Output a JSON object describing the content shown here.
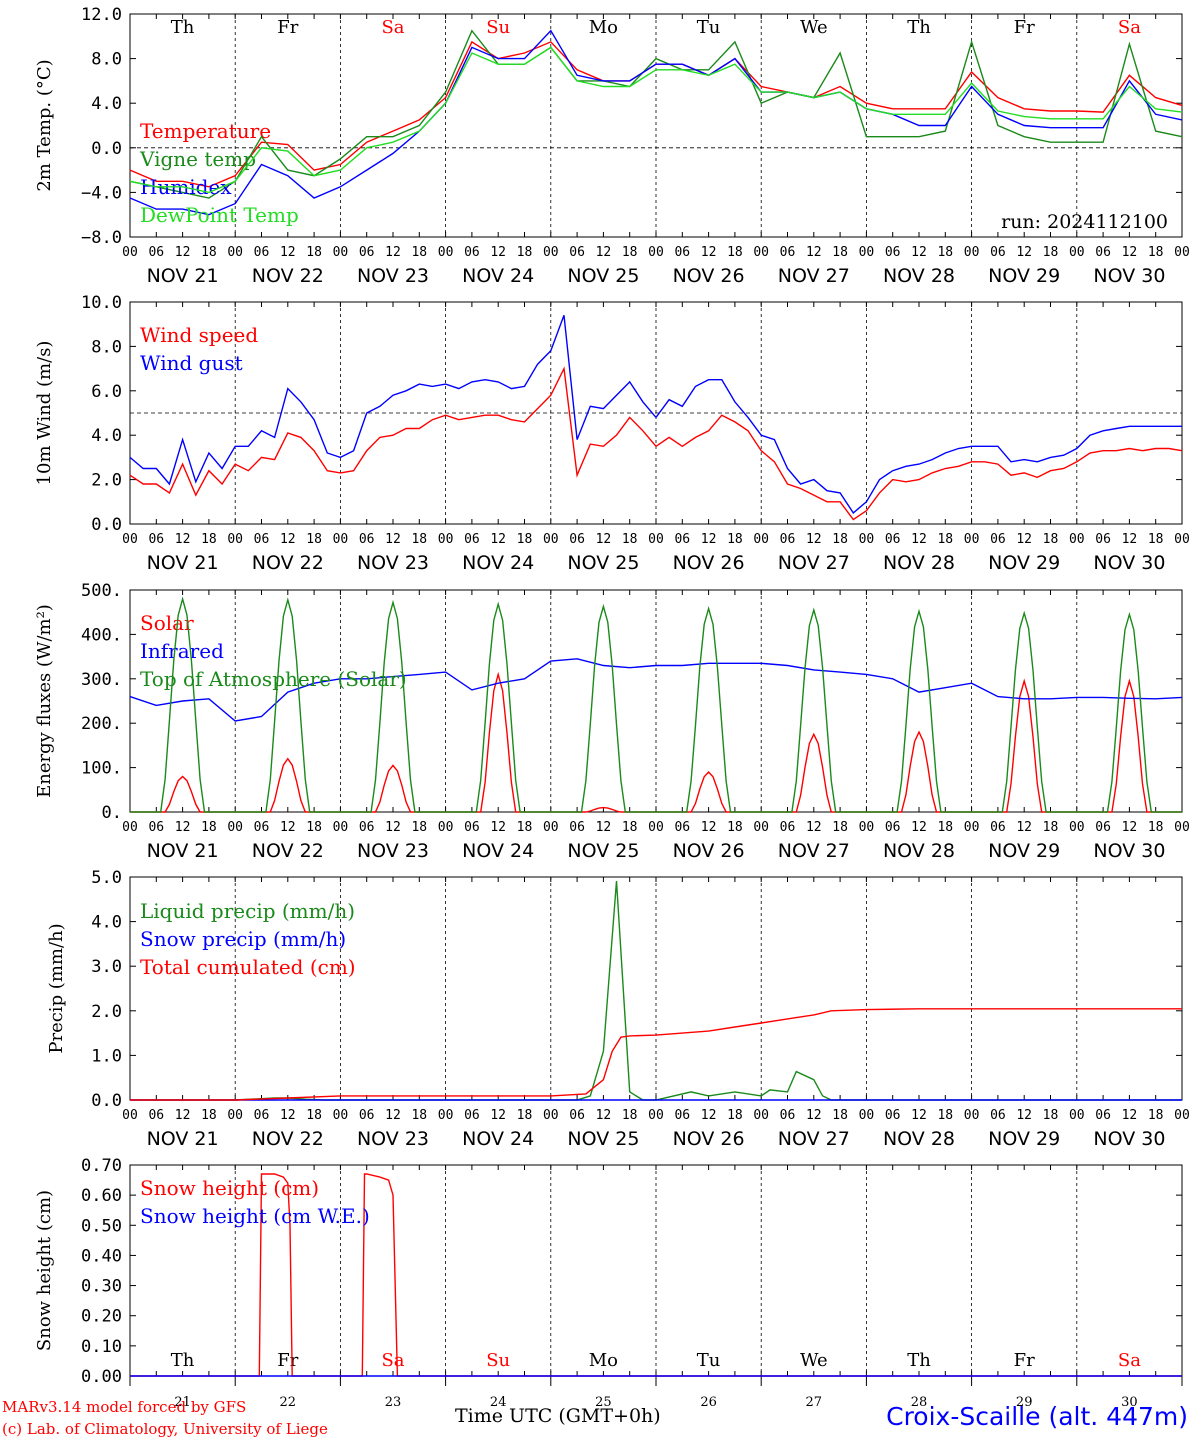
{
  "run_label": "run: 2024112100",
  "footer": {
    "model": "MARv3.14 model forced by GFS",
    "credit": "(c) Lab. of Climatology, University of Liege",
    "time_label": "Time UTC (GMT+0h)",
    "station": "Croix-Scaille (alt. 447m)"
  },
  "colors": {
    "red": "#ff0000",
    "green": "#1a8a1a",
    "blue": "#0000ff",
    "lightgreen": "#22dd22",
    "weekend": "#ff0000"
  },
  "chart_data": [
    {
      "type": "line",
      "ylabel": "2m Temp. (°C)",
      "ylim": [
        -8,
        12
      ],
      "yticks": [
        "12.0",
        "8.0",
        "4.0",
        "0.0",
        "−4.0",
        "−8.0"
      ],
      "x_unit": "hours since NOV 21 00 UTC",
      "series": [
        {
          "name": "Temperature",
          "color": "red",
          "x": [
            0,
            6,
            12,
            18,
            24,
            30,
            36,
            42,
            48,
            54,
            60,
            66,
            72,
            78,
            84,
            90,
            96,
            102,
            108,
            114,
            120,
            126,
            132,
            138,
            144,
            150,
            156,
            162,
            168,
            174,
            180,
            186,
            192,
            198,
            204,
            210,
            216,
            222,
            228,
            234,
            240
          ],
          "values": [
            -2,
            -3,
            -3,
            -3.5,
            -2.5,
            0.5,
            0.3,
            -2,
            -1.5,
            0.5,
            1.5,
            2.5,
            4.5,
            9.5,
            8,
            8.5,
            9.5,
            7,
            6,
            6,
            7.5,
            7.5,
            6.5,
            8,
            5.5,
            5,
            4.5,
            5.5,
            4,
            3.5,
            3.5,
            3.5,
            6.8,
            4.5,
            3.5,
            3.3,
            3.3,
            3.2,
            6.5,
            4.5,
            3.8
          ]
        },
        {
          "name": "Vigne temp",
          "color": "green",
          "x": [
            0,
            6,
            12,
            18,
            24,
            30,
            36,
            42,
            48,
            54,
            60,
            66,
            72,
            78,
            84,
            90,
            96,
            102,
            108,
            114,
            120,
            126,
            132,
            138,
            144,
            150,
            156,
            162,
            168,
            174,
            180,
            186,
            192,
            198,
            204,
            210,
            216,
            222,
            228,
            234,
            240
          ],
          "values": [
            -3,
            -3.5,
            -4,
            -4.5,
            -3,
            1,
            -2,
            -2.5,
            -1,
            1,
            1,
            2,
            5,
            10.5,
            7.5,
            7.5,
            9,
            6,
            6,
            5.5,
            8,
            7,
            7,
            9.5,
            4,
            5,
            4.5,
            8.5,
            1,
            1,
            1,
            1.5,
            9.5,
            2,
            1,
            0.5,
            0.5,
            0.5,
            9.3,
            1.5,
            1
          ]
        },
        {
          "name": "Humidex",
          "color": "blue",
          "x": [
            0,
            6,
            12,
            18,
            24,
            30,
            36,
            42,
            48,
            54,
            60,
            66,
            72,
            78,
            84,
            90,
            96,
            102,
            108,
            114,
            120,
            126,
            132,
            138,
            144,
            150,
            156,
            162,
            168,
            174,
            180,
            186,
            192,
            198,
            204,
            210,
            216,
            222,
            228,
            234,
            240
          ],
          "values": [
            -4.5,
            -5.5,
            -5.5,
            -6,
            -5,
            -1.5,
            -2.5,
            -4.5,
            -3.5,
            -2,
            -0.5,
            1.5,
            4,
            9,
            8,
            8,
            10.5,
            6.5,
            6,
            6,
            7.5,
            7.5,
            6.5,
            8,
            5,
            5,
            4.5,
            5,
            3.5,
            3,
            2,
            2,
            5.5,
            3,
            2,
            1.8,
            1.8,
            1.8,
            6,
            3,
            2.5
          ]
        },
        {
          "name": "DewPoint Temp",
          "color": "lightgreen",
          "x": [
            0,
            6,
            12,
            18,
            24,
            30,
            36,
            42,
            48,
            54,
            60,
            66,
            72,
            78,
            84,
            90,
            96,
            102,
            108,
            114,
            120,
            126,
            132,
            138,
            144,
            150,
            156,
            162,
            168,
            174,
            180,
            186,
            192,
            198,
            204,
            210,
            216,
            222,
            228,
            234,
            240
          ],
          "values": [
            -3,
            -3.5,
            -3.5,
            -4,
            -3,
            0,
            -0.3,
            -2.5,
            -2,
            0,
            0.5,
            1.5,
            4,
            8.5,
            7.5,
            7.5,
            9,
            6,
            5.5,
            5.5,
            7,
            7,
            6.5,
            7.5,
            5,
            5,
            4.5,
            5,
            3.5,
            3,
            3,
            3,
            5.8,
            3.3,
            2.8,
            2.6,
            2.6,
            2.6,
            5.5,
            3.5,
            3.2
          ]
        }
      ]
    },
    {
      "type": "line",
      "ylabel": "10m Wind (m/s)",
      "ylim": [
        0,
        10
      ],
      "yticks": [
        "10.0",
        "8.0",
        "6.0",
        "4.0",
        "2.0",
        "0.0"
      ],
      "x_unit": "hours since NOV 21 00 UTC",
      "series": [
        {
          "name": "Wind speed",
          "color": "red",
          "x": [
            0,
            3,
            6,
            9,
            12,
            15,
            18,
            21,
            24,
            27,
            30,
            33,
            36,
            39,
            42,
            45,
            48,
            51,
            54,
            57,
            60,
            63,
            66,
            69,
            72,
            75,
            78,
            81,
            84,
            87,
            90,
            93,
            96,
            99,
            102,
            105,
            108,
            111,
            114,
            117,
            120,
            123,
            126,
            129,
            132,
            135,
            138,
            141,
            144,
            147,
            150,
            153,
            156,
            159,
            162,
            165,
            168,
            171,
            174,
            177,
            180,
            183,
            186,
            189,
            192,
            195,
            198,
            201,
            204,
            207,
            210,
            213,
            216,
            219,
            222,
            225,
            228,
            231,
            234,
            237,
            240
          ],
          "values": [
            2.2,
            1.8,
            1.8,
            1.4,
            2.7,
            1.3,
            2.4,
            1.8,
            2.7,
            2.4,
            3.0,
            2.9,
            4.1,
            3.9,
            3.3,
            2.4,
            2.3,
            2.4,
            3.3,
            3.9,
            4.0,
            4.3,
            4.3,
            4.7,
            4.9,
            4.7,
            4.8,
            4.9,
            4.9,
            4.7,
            4.6,
            5.2,
            5.8,
            7.0,
            2.2,
            3.6,
            3.5,
            4.0,
            4.8,
            4.2,
            3.5,
            3.9,
            3.5,
            3.9,
            4.2,
            4.9,
            4.6,
            4.2,
            3.3,
            2.8,
            1.8,
            1.6,
            1.3,
            1.0,
            1.0,
            0.2,
            0.6,
            1.4,
            2.0,
            1.9,
            2.0,
            2.3,
            2.5,
            2.6,
            2.8,
            2.8,
            2.7,
            2.2,
            2.3,
            2.1,
            2.4,
            2.5,
            2.8,
            3.2,
            3.3,
            3.3,
            3.4,
            3.3,
            3.4,
            3.4,
            3.3
          ]
        },
        {
          "name": "Wind gust",
          "color": "blue",
          "x": [
            0,
            3,
            6,
            9,
            12,
            15,
            18,
            21,
            24,
            27,
            30,
            33,
            36,
            39,
            42,
            45,
            48,
            51,
            54,
            57,
            60,
            63,
            66,
            69,
            72,
            75,
            78,
            81,
            84,
            87,
            90,
            93,
            96,
            99,
            102,
            105,
            108,
            111,
            114,
            117,
            120,
            123,
            126,
            129,
            132,
            135,
            138,
            141,
            144,
            147,
            150,
            153,
            156,
            159,
            162,
            165,
            168,
            171,
            174,
            177,
            180,
            183,
            186,
            189,
            192,
            195,
            198,
            201,
            204,
            207,
            210,
            213,
            216,
            219,
            222,
            225,
            228,
            231,
            234,
            237,
            240
          ],
          "values": [
            3.0,
            2.5,
            2.5,
            1.8,
            3.8,
            1.9,
            3.2,
            2.5,
            3.5,
            3.5,
            4.2,
            3.9,
            6.1,
            5.5,
            4.7,
            3.2,
            3.0,
            3.3,
            5.0,
            5.3,
            5.8,
            6.0,
            6.3,
            6.2,
            6.3,
            6.1,
            6.4,
            6.5,
            6.4,
            6.1,
            6.2,
            7.2,
            7.8,
            9.4,
            3.8,
            5.3,
            5.2,
            5.8,
            6.4,
            5.5,
            4.8,
            5.6,
            5.3,
            6.2,
            6.5,
            6.5,
            5.5,
            4.8,
            4.0,
            3.8,
            2.5,
            1.8,
            2.0,
            1.5,
            1.4,
            0.5,
            1.0,
            2.0,
            2.4,
            2.6,
            2.7,
            2.9,
            3.2,
            3.4,
            3.5,
            3.5,
            3.5,
            2.8,
            2.9,
            2.8,
            3.0,
            3.1,
            3.4,
            4.0,
            4.2,
            4.3,
            4.4,
            4.4,
            4.4,
            4.4,
            4.4
          ]
        }
      ]
    },
    {
      "type": "line",
      "ylabel": "Energy fluxes (W/m²)",
      "ylim": [
        0,
        500
      ],
      "yticks": [
        "500.",
        "400.",
        "300.",
        "200.",
        "100.",
        "0."
      ],
      "x_unit": "hours since NOV 21 00 UTC",
      "series": [
        {
          "name": "Solar",
          "color": "red",
          "daily_peak": [
            80,
            120,
            105,
            310,
            10,
            90,
            175,
            180,
            295,
            295
          ]
        },
        {
          "name": "Infrared",
          "color": "blue",
          "x": [
            0,
            6,
            12,
            18,
            24,
            30,
            36,
            42,
            48,
            54,
            60,
            66,
            72,
            78,
            84,
            90,
            96,
            102,
            108,
            114,
            120,
            126,
            132,
            138,
            144,
            150,
            156,
            162,
            168,
            174,
            180,
            186,
            192,
            198,
            204,
            210,
            216,
            222,
            228,
            234,
            240
          ],
          "values": [
            260,
            240,
            250,
            255,
            205,
            215,
            270,
            290,
            300,
            300,
            305,
            310,
            315,
            275,
            290,
            300,
            340,
            345,
            330,
            325,
            330,
            330,
            335,
            335,
            335,
            330,
            320,
            315,
            310,
            300,
            270,
            280,
            290,
            260,
            255,
            255,
            258,
            258,
            256,
            255,
            258
          ]
        },
        {
          "name": "Top of Atmosphere (Solar)",
          "color": "green",
          "daily_peak": [
            480,
            478,
            472,
            468,
            463,
            458,
            455,
            452,
            448,
            445
          ]
        }
      ]
    },
    {
      "type": "line",
      "ylabel": "Precip (mm/h)",
      "ylim": [
        0,
        5.5
      ],
      "yticks": [
        "5.0",
        "4.0",
        "3.0",
        "2.0",
        "1.0",
        "0.0"
      ],
      "x_unit": "hours since NOV 21 00 UTC",
      "series": [
        {
          "name": "Liquid precip (mm/h)",
          "color": "green",
          "x": [
            0,
            24,
            33,
            36,
            40,
            44,
            72,
            96,
            102,
            105,
            108,
            111,
            114,
            117,
            120,
            128,
            132,
            138,
            144,
            146,
            150,
            152,
            156,
            158,
            160,
            240
          ],
          "values": [
            0,
            0,
            0.05,
            0.05,
            0.02,
            0,
            0,
            0,
            0,
            0.1,
            1.2,
            5.4,
            0.2,
            0,
            0,
            0.2,
            0.1,
            0.2,
            0.1,
            0.25,
            0.2,
            0.7,
            0.5,
            0.1,
            0,
            0
          ]
        },
        {
          "name": "Snow precip (mm/h)",
          "color": "blue",
          "x": [
            0,
            240
          ],
          "values": [
            0,
            0
          ]
        },
        {
          "name": "Total cumulated (cm)",
          "color": "red",
          "x": [
            0,
            24,
            36,
            48,
            60,
            72,
            96,
            104,
            108,
            110,
            112,
            114,
            120,
            126,
            132,
            138,
            144,
            150,
            156,
            160,
            168,
            180,
            240
          ],
          "values": [
            0,
            0,
            0.05,
            0.1,
            0.1,
            0.1,
            0.1,
            0.15,
            0.5,
            1.2,
            1.55,
            1.58,
            1.6,
            1.65,
            1.7,
            1.8,
            1.9,
            2.0,
            2.1,
            2.2,
            2.23,
            2.25,
            2.25
          ]
        }
      ]
    },
    {
      "type": "line",
      "ylabel": "Snow height (cm)",
      "ylim": [
        0,
        0.7
      ],
      "yticks": [
        "0.70",
        "0.60",
        "0.50",
        "0.40",
        "0.30",
        "0.20",
        "0.10",
        "0.00"
      ],
      "x_unit": "hours since NOV 21 00 UTC",
      "series": [
        {
          "name": "Snow height (cm)",
          "color": "red",
          "x": [
            0,
            29.5,
            30,
            33,
            35,
            36,
            36.5,
            37,
            53,
            53.5,
            54,
            57,
            59,
            60,
            60.5,
            61,
            240
          ],
          "values": [
            0,
            0,
            0.67,
            0.67,
            0.66,
            0.64,
            0.5,
            0,
            0,
            0.67,
            0.67,
            0.66,
            0.65,
            0.6,
            0.3,
            0,
            0
          ]
        },
        {
          "name": "Snow height (cm W.E.)",
          "color": "blue",
          "x": [
            0,
            240
          ],
          "values": [
            0,
            0
          ]
        }
      ]
    }
  ],
  "x_axis": {
    "hour_ticks": [
      "00",
      "06",
      "12",
      "18"
    ],
    "end_tick": "00",
    "dates": [
      "NOV 21",
      "NOV 22",
      "NOV 23",
      "NOV 24",
      "NOV 25",
      "NOV 26",
      "NOV 27",
      "NOV 28",
      "NOV 29",
      "NOV 30"
    ],
    "days": [
      {
        "abbr": "Th",
        "num": "21",
        "weekend": false
      },
      {
        "abbr": "Fr",
        "num": "22",
        "weekend": false
      },
      {
        "abbr": "Sa",
        "num": "23",
        "weekend": true
      },
      {
        "abbr": "Su",
        "num": "24",
        "weekend": true
      },
      {
        "abbr": "Mo",
        "num": "25",
        "weekend": false
      },
      {
        "abbr": "Tu",
        "num": "26",
        "weekend": false
      },
      {
        "abbr": "We",
        "num": "27",
        "weekend": false
      },
      {
        "abbr": "Th",
        "num": "28",
        "weekend": false
      },
      {
        "abbr": "Fr",
        "num": "29",
        "weekend": false
      },
      {
        "abbr": "Sa",
        "num": "30",
        "weekend": true
      }
    ]
  }
}
